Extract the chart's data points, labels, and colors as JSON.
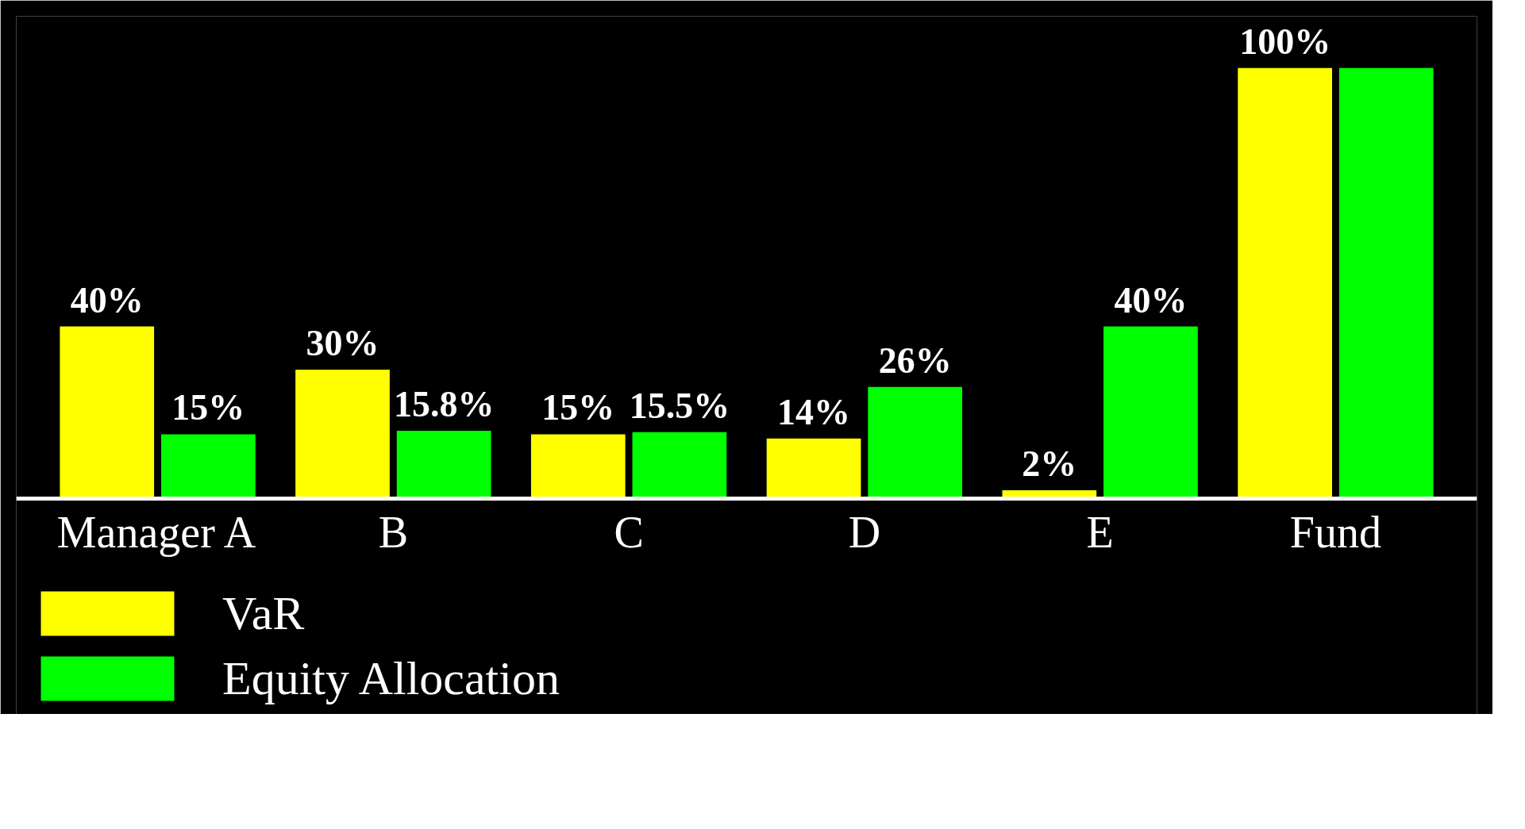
{
  "chart_data": {
    "type": "bar",
    "categories": [
      "Manager A",
      "B",
      "C",
      "D",
      "E",
      "Fund"
    ],
    "series": [
      {
        "name": "VaR",
        "color": "#ffff00",
        "values": [
          40,
          30,
          15,
          14,
          2,
          100
        ],
        "value_labels": [
          "40%",
          "30%",
          "15%",
          "14%",
          "2%",
          "100%"
        ]
      },
      {
        "name": "Equity Allocation",
        "color": "#00ff00",
        "values": [
          15,
          15.8,
          15.5,
          26,
          40,
          100
        ],
        "value_labels": [
          "15%",
          "15.8%",
          "15.5%",
          "26%",
          "40%",
          null
        ]
      }
    ],
    "legend": "bottom left"
  }
}
